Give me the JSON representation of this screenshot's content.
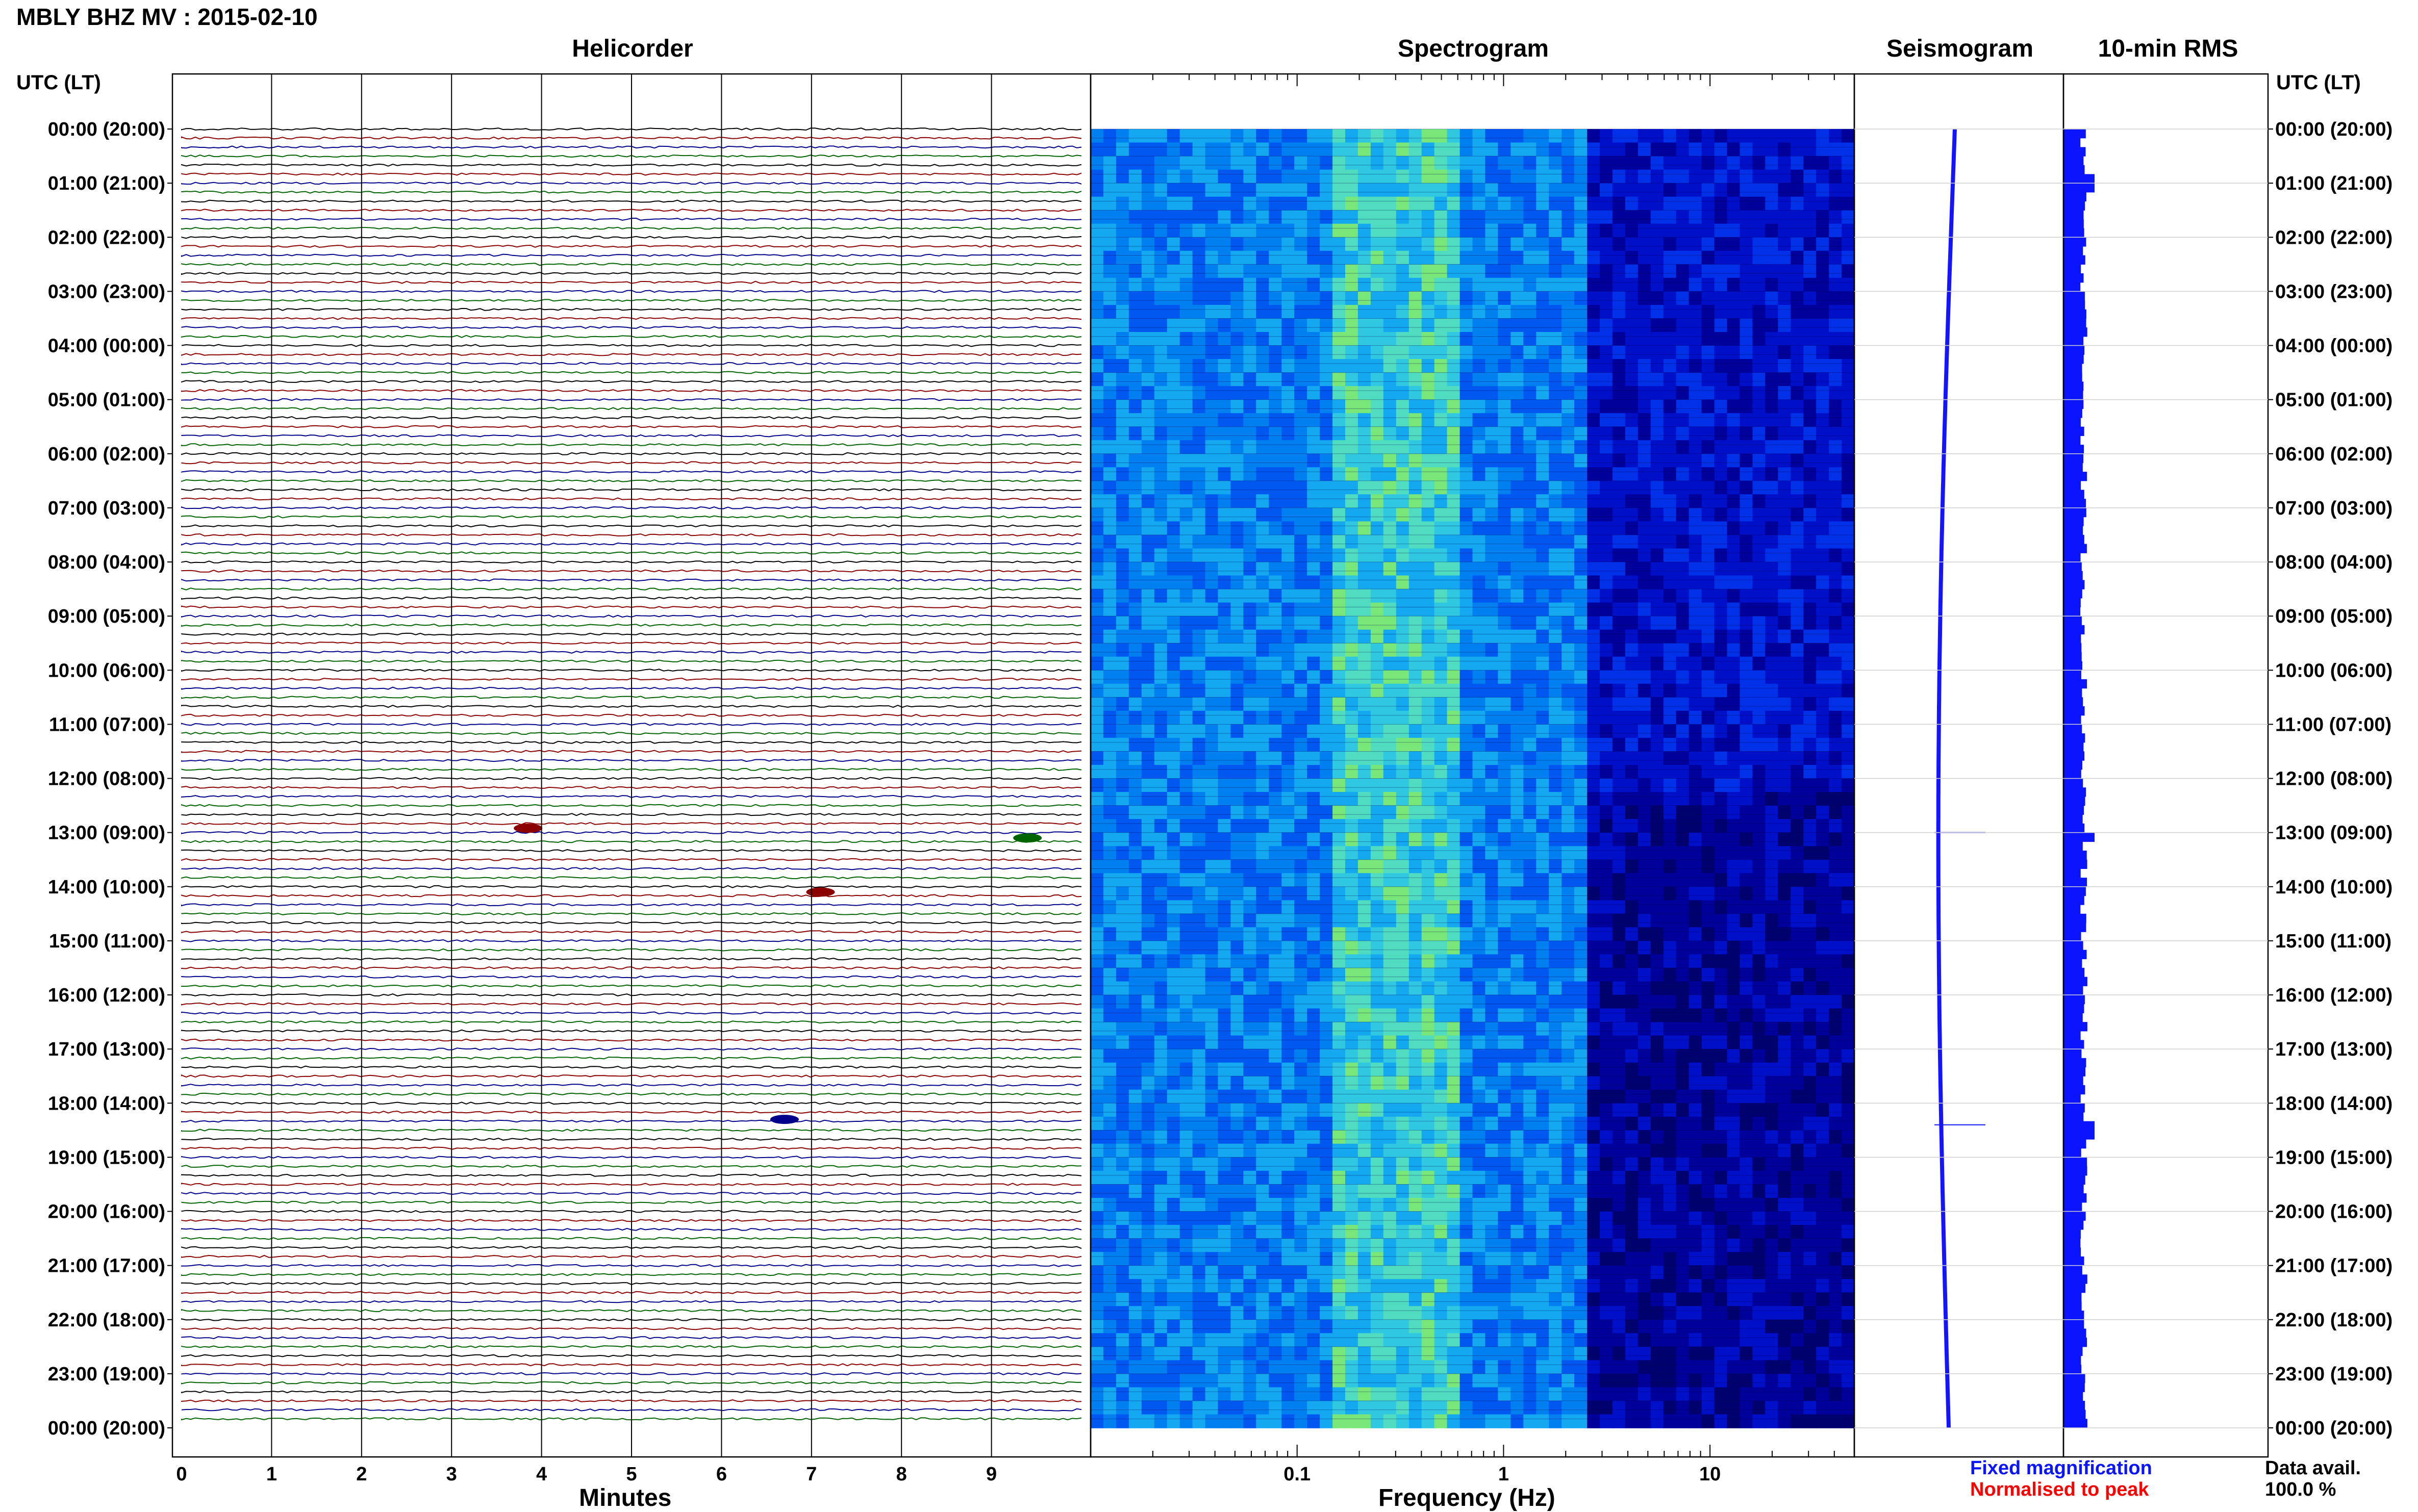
{
  "header": {
    "title": "MBLY BHZ MV : 2015-02-10",
    "panels": {
      "helicorder": "Helicorder",
      "spectrogram": "Spectrogram",
      "seismogram": "Seismogram",
      "rms": "10-min RMS"
    },
    "utc_label_left": "UTC (LT)",
    "utc_label_right": "UTC (LT)"
  },
  "legend": {
    "fixed": "Fixed magnification",
    "normalised": "Normalised to peak",
    "fixed_color": "#0a14ff",
    "normalised_color": "#ff0000",
    "data_avail_label": "Data avail.",
    "data_avail_value": "100.0 %"
  },
  "colors": {
    "trace_black": "#000000",
    "trace_red": "#8b0000",
    "trace_blue": "#00008b",
    "trace_green": "#006400",
    "rms_bar": "#0a14ff",
    "spectrogram_low": "#00006e",
    "spectrogram_high": "#78e678"
  },
  "chart_data": [
    {
      "type": "line",
      "name": "Helicorder",
      "xlabel": "Minutes",
      "x_ticks": [
        "0",
        "1",
        "2",
        "3",
        "4",
        "5",
        "6",
        "7",
        "8",
        "9"
      ],
      "xlim": [
        0,
        10
      ],
      "row_minutes": 10,
      "rows": 144,
      "trace_color_cycle": [
        "black",
        "red",
        "blue",
        "green"
      ],
      "time_labels": [
        "00:00 (20:00)",
        "01:00 (21:00)",
        "02:00 (22:00)",
        "03:00 (23:00)",
        "04:00 (00:00)",
        "05:00 (01:00)",
        "06:00 (02:00)",
        "07:00 (03:00)",
        "08:00 (04:00)",
        "09:00 (05:00)",
        "10:00 (06:00)",
        "11:00 (07:00)",
        "12:00 (08:00)",
        "13:00 (09:00)",
        "14:00 (10:00)",
        "15:00 (11:00)",
        "16:00 (12:00)",
        "17:00 (13:00)",
        "18:00 (14:00)",
        "19:00 (15:00)",
        "20:00 (16:00)",
        "21:00 (17:00)",
        "22:00 (18:00)",
        "23:00 (19:00)",
        "00:00 (20:00)"
      ],
      "events": [
        {
          "hour": 12.92,
          "minute": 3.85,
          "color": "red"
        },
        {
          "hour": 13.1,
          "minute": 9.4,
          "color": "green"
        },
        {
          "hour": 14.1,
          "minute": 7.1,
          "color": "red"
        },
        {
          "hour": 18.3,
          "minute": 6.7,
          "color": "blue"
        }
      ]
    },
    {
      "type": "heatmap",
      "name": "Spectrogram",
      "xlabel": "Frequency (Hz)",
      "x_scale": "log",
      "xlim": [
        0.01,
        50
      ],
      "x_ticks": [
        "0.1",
        "1",
        "10"
      ],
      "ylim_hours": [
        0,
        24
      ]
    },
    {
      "type": "line",
      "name": "Seismogram",
      "ylim_hours": [
        0,
        24
      ],
      "spikes_hours": [
        13.0,
        18.4
      ]
    },
    {
      "type": "bar",
      "name": "10-min RMS",
      "ylim_hours": [
        0,
        24
      ],
      "spikes_hours": [
        0.9,
        13.0,
        18.4
      ]
    }
  ]
}
